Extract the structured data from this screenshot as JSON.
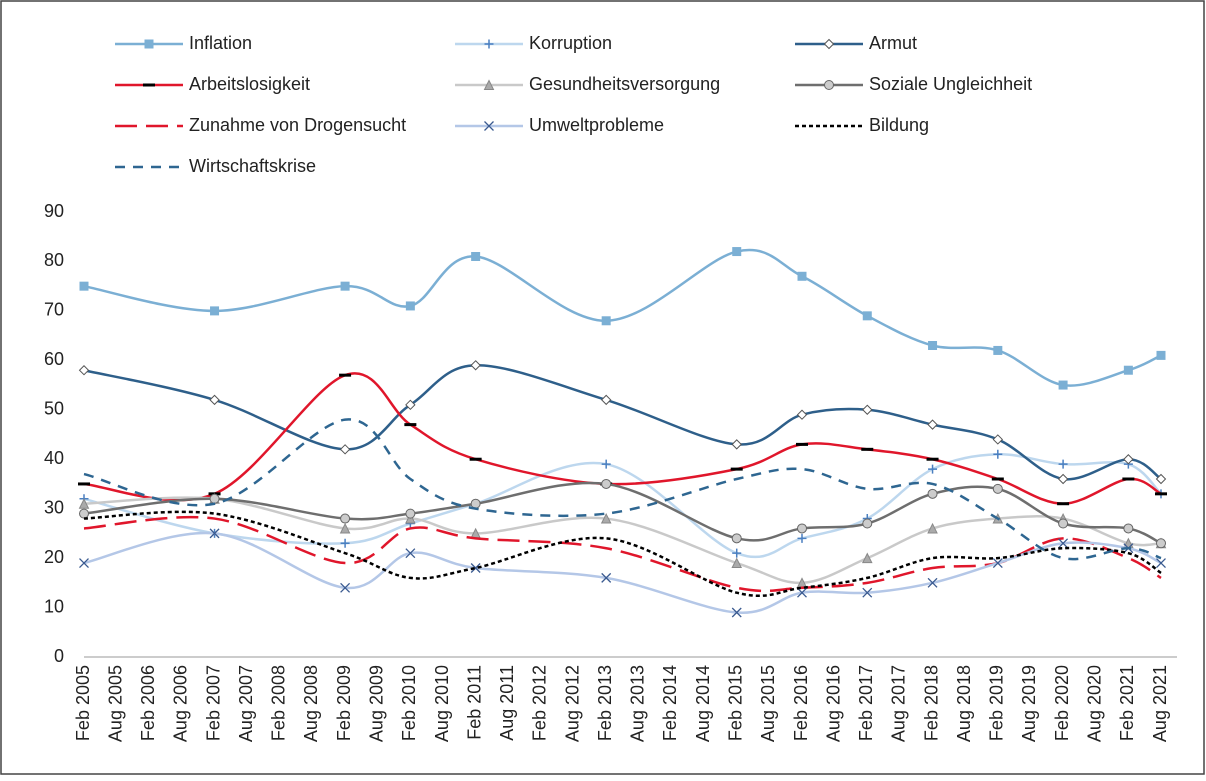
{
  "chart_data": {
    "type": "line",
    "categories": [
      "Feb 2005",
      "Aug 2005",
      "Feb 2006",
      "Aug 2006",
      "Feb 2007",
      "Aug 2007",
      "Feb 2008",
      "Aug 2008",
      "Feb 2009",
      "Aug 2009",
      "Feb 2010",
      "Aug 2010",
      "Feb 2011",
      "Aug 2011",
      "Feb 2012",
      "Aug 2012",
      "Feb 2013",
      "Aug 2013",
      "Feb 2014",
      "Aug 2014",
      "Feb 2015",
      "Aug 2015",
      "Feb 2016",
      "Aug 2016",
      "Feb 2017",
      "Aug 2017",
      "Feb 2018",
      "Aug 2018",
      "Feb 2019",
      "Aug 2019",
      "Feb 2020",
      "Aug 2020",
      "Feb 2021",
      "Aug 2021"
    ],
    "x": [
      "Feb 2005",
      "Feb 2007",
      "Feb 2009",
      "Feb 2010",
      "Feb 2011",
      "Feb 2013",
      "Feb 2015",
      "Feb 2016",
      "Feb 2017",
      "Feb 2018",
      "Feb 2019",
      "Feb 2020",
      "Feb 2021",
      "Aug 2021"
    ],
    "ylim": [
      0,
      90
    ],
    "yticks": [
      0,
      10,
      20,
      30,
      40,
      50,
      60,
      70,
      80,
      90
    ],
    "grid": false,
    "series": [
      {
        "name": "Inflation",
        "color": "#7bafd4",
        "marker": "square",
        "dash": "solid",
        "values": [
          75,
          70,
          75,
          71,
          81,
          68,
          82,
          77,
          69,
          63,
          62,
          55,
          58,
          61
        ]
      },
      {
        "name": "Korruption",
        "color": "#bdd7ee",
        "marker": "plus",
        "dash": "solid",
        "values": [
          32,
          25,
          23,
          27,
          31,
          39,
          21,
          24,
          28,
          38,
          41,
          39,
          39,
          33
        ]
      },
      {
        "name": "Armut",
        "color": "#2e5f8a",
        "marker": "diamond",
        "dash": "solid",
        "values": [
          58,
          52,
          42,
          51,
          59,
          52,
          43,
          49,
          50,
          47,
          44,
          36,
          40,
          36
        ]
      },
      {
        "name": "Arbeitslosigkeit",
        "color": "#e0162b",
        "marker": "dash",
        "dash": "solid",
        "values": [
          35,
          33,
          57,
          47,
          40,
          35,
          38,
          43,
          42,
          40,
          36,
          31,
          36,
          33
        ]
      },
      {
        "name": "Gesundheitsversorgung",
        "color": "#c9c9c9",
        "marker": "triangle",
        "dash": "solid",
        "values": [
          31,
          32,
          26,
          28,
          25,
          28,
          19,
          15,
          20,
          26,
          28,
          28,
          23,
          23
        ]
      },
      {
        "name": "Soziale Ungleichheit",
        "color": "#6e6e6e",
        "marker": "circle",
        "dash": "solid",
        "values": [
          29,
          32,
          28,
          29,
          31,
          35,
          24,
          26,
          27,
          33,
          34,
          27,
          26,
          23
        ]
      },
      {
        "name": "Zunahme von Drogensucht",
        "color": "#e0162b",
        "marker": "none",
        "dash": "long",
        "values": [
          26,
          28,
          19,
          26,
          24,
          22,
          14,
          14,
          15,
          18,
          19,
          24,
          20,
          16
        ]
      },
      {
        "name": "Umweltprobleme",
        "color": "#b4c7e7",
        "marker": "x",
        "dash": "solid",
        "values": [
          19,
          25,
          14,
          21,
          18,
          16,
          9,
          13,
          13,
          15,
          19,
          23,
          22,
          19
        ]
      },
      {
        "name": "Bildung",
        "color": "#000000",
        "marker": "none",
        "dash": "dot",
        "values": [
          28,
          29,
          21,
          16,
          18,
          24,
          13,
          14,
          16,
          20,
          20,
          22,
          21,
          17
        ]
      },
      {
        "name": "Wirtschaftskrise",
        "color": "#2e6691",
        "marker": "none",
        "dash": "medium",
        "values": [
          37,
          31,
          48,
          36,
          30,
          29,
          36,
          38,
          34,
          35,
          28,
          20,
          22,
          20
        ]
      }
    ]
  }
}
